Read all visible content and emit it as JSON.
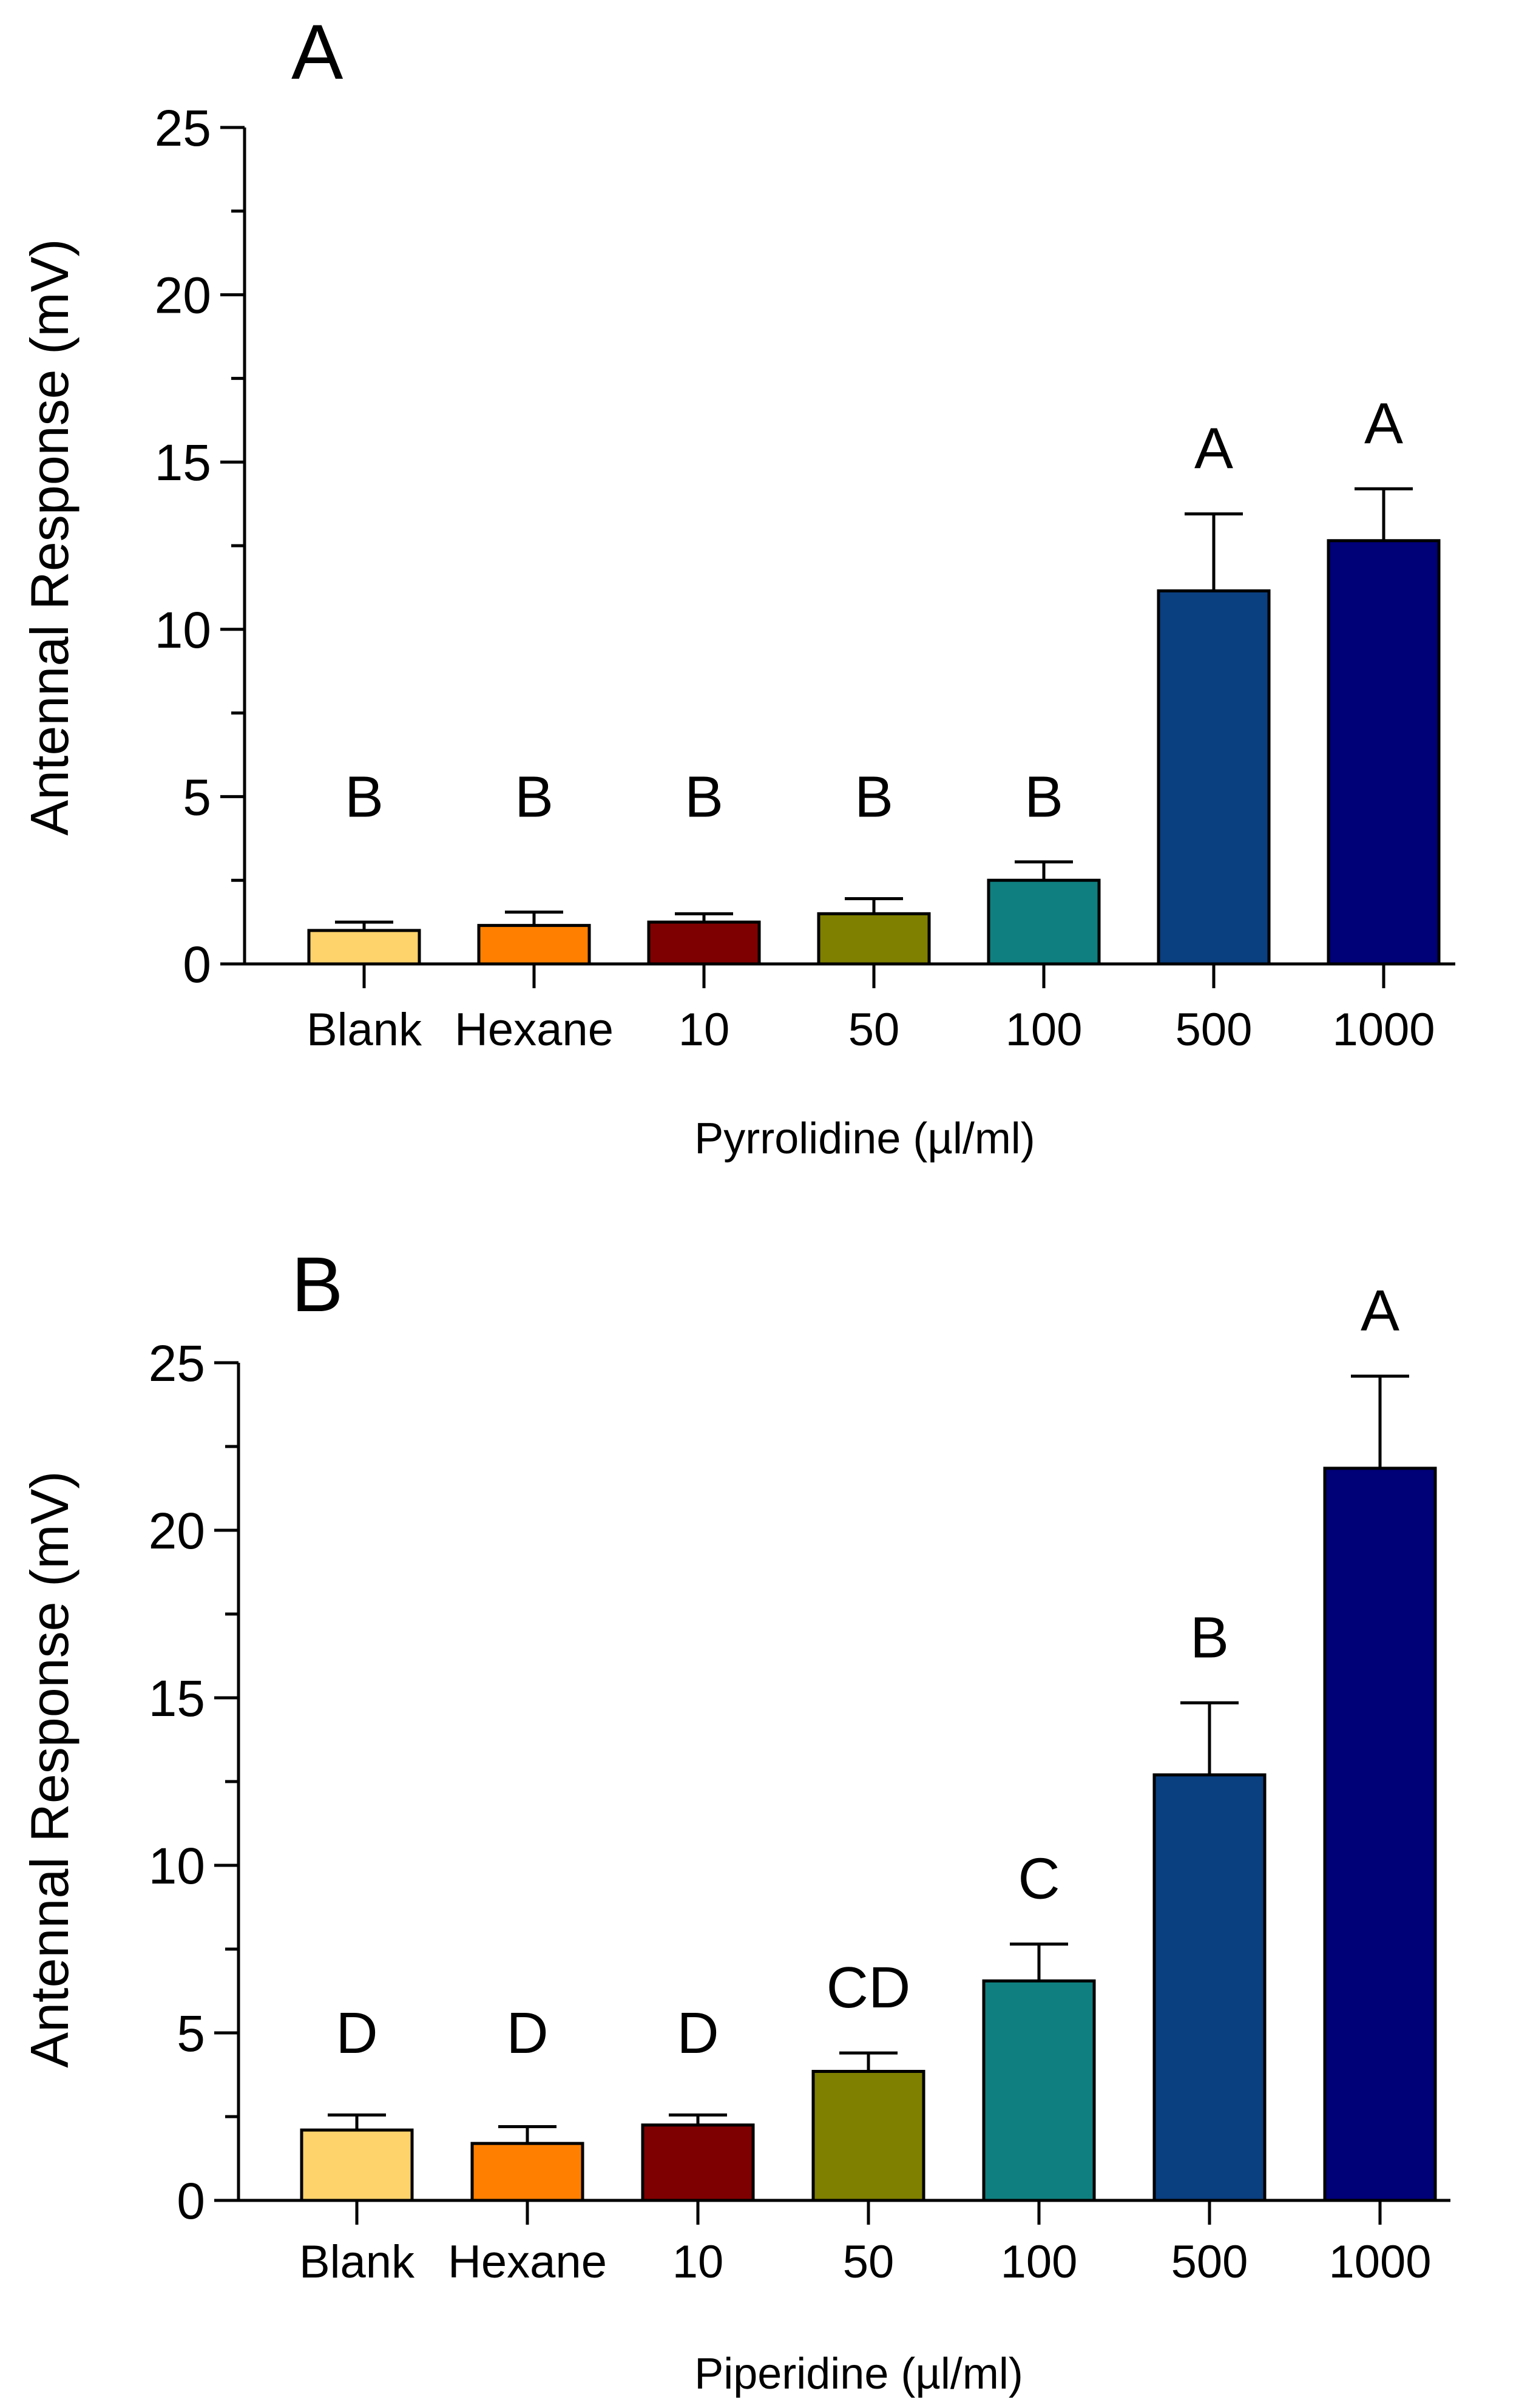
{
  "chart_data": [
    {
      "panel": "A",
      "type": "bar",
      "ylabel": "Antennal Response (mV)",
      "xlabel": "Pyrrolidine (µl/ml)",
      "ylim": [
        0,
        25
      ],
      "yticks": [
        0,
        5,
        10,
        15,
        20,
        25
      ],
      "categories": [
        "Blank",
        "Hexane",
        "10",
        "50",
        "100",
        "500",
        "1000"
      ],
      "values": [
        1.0,
        1.15,
        1.25,
        1.5,
        2.5,
        11.15,
        12.65
      ],
      "errors": [
        0.25,
        0.4,
        0.25,
        0.45,
        0.55,
        2.3,
        1.55
      ],
      "significance": [
        "B",
        "B",
        "B",
        "B",
        "B",
        "A",
        "A"
      ],
      "colors": [
        "#FFD36B",
        "#FF8000",
        "#7F0000",
        "#7F7F00",
        "#0F7F7F",
        "#0A3F80",
        "#000077"
      ]
    },
    {
      "panel": "B",
      "type": "bar",
      "ylabel": "Antennal Response (mV)",
      "xlabel": "Piperidine (µl/ml)",
      "ylim": [
        0,
        25
      ],
      "yticks": [
        0,
        5,
        10,
        15,
        20,
        25
      ],
      "categories": [
        "Blank",
        "Hexane",
        "10",
        "50",
        "100",
        "500",
        "1000"
      ],
      "values": [
        2.1,
        1.7,
        2.25,
        3.85,
        6.55,
        12.7,
        21.85
      ],
      "errors": [
        0.45,
        0.5,
        0.3,
        0.55,
        1.1,
        2.15,
        2.75
      ],
      "significance": [
        "D",
        "D",
        "D",
        "CD",
        "C",
        "B",
        "A"
      ],
      "colors": [
        "#FFD36B",
        "#FF8000",
        "#7F0000",
        "#7F7F00",
        "#0F7F7F",
        "#0A3F80",
        "#000077"
      ]
    }
  ]
}
